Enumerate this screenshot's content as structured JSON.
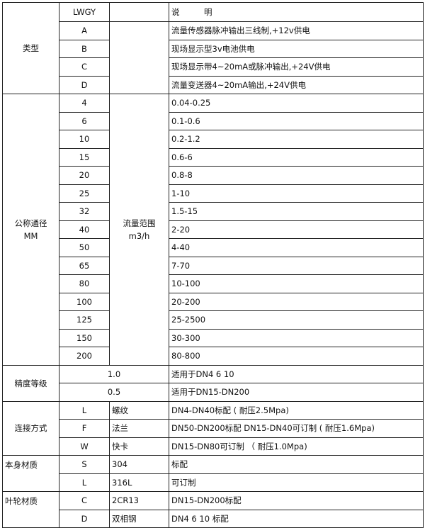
{
  "header": {
    "model": "LWGY",
    "description": "说　　　明"
  },
  "type": {
    "label": "类型",
    "rows": [
      {
        "code": "A",
        "desc": "流量传感器脉冲输出三线制,+12v供电"
      },
      {
        "code": "B",
        "desc": "现场显示型3v电池供电"
      },
      {
        "code": "C",
        "desc": "现场显示带4~20mA或脉冲输出,+24V供电"
      },
      {
        "code": "D",
        "desc": "流量变送器4~20mA输出,+24V供电"
      }
    ]
  },
  "diameter": {
    "label": "公称通径",
    "unit": "MM",
    "range_label": "流量范围",
    "range_unit": "m3/h",
    "rows": [
      {
        "dn": "4",
        "range": "0.04-0.25"
      },
      {
        "dn": "6",
        "range": "0.1-0.6"
      },
      {
        "dn": "10",
        "range": "0.2-1.2"
      },
      {
        "dn": "15",
        "range": "0.6-6"
      },
      {
        "dn": "20",
        "range": "0.8-8"
      },
      {
        "dn": "25",
        "range": "1-10"
      },
      {
        "dn": "32",
        "range": "1.5-15"
      },
      {
        "dn": "40",
        "range": "2-20"
      },
      {
        "dn": "50",
        "range": "4-40"
      },
      {
        "dn": "65",
        "range": "7-70"
      },
      {
        "dn": "80",
        "range": "10-100"
      },
      {
        "dn": "100",
        "range": "20-200"
      },
      {
        "dn": "125",
        "range": "25-2500"
      },
      {
        "dn": "150",
        "range": "30-300"
      },
      {
        "dn": "200",
        "range": "80-800"
      }
    ]
  },
  "accuracy": {
    "label": "精度等级",
    "rows": [
      {
        "grade": "1.0",
        "desc": "适用于DN4  6  10"
      },
      {
        "grade": "0.5",
        "desc": "适用于DN15-DN200"
      }
    ]
  },
  "connection": {
    "label": "连接方式",
    "rows": [
      {
        "code": "L",
        "name": "螺纹",
        "desc": "DN4-DN40标配 ( 耐压2.5Mpa)"
      },
      {
        "code": "F",
        "name": "法兰",
        "desc": "DN50-DN200标配 DN15-DN40可订制 ( 耐压1.6Mpa)"
      },
      {
        "code": "W",
        "name": "快卡",
        "desc": "DN15-DN80可订制 （ 耐压1.0Mpa)"
      }
    ]
  },
  "body_material": {
    "label": "本身材质",
    "rows": [
      {
        "code": "S",
        "name": "304",
        "desc": "标配"
      },
      {
        "code": "L",
        "name": "316L",
        "desc": "可订制"
      }
    ]
  },
  "impeller_material": {
    "label": "叶轮材质",
    "rows": [
      {
        "code": "C",
        "name": "2CR13",
        "desc": "DN15-DN200标配"
      },
      {
        "code": "D",
        "name": "双相钢",
        "desc": "DN4 6 10 标配"
      }
    ]
  }
}
